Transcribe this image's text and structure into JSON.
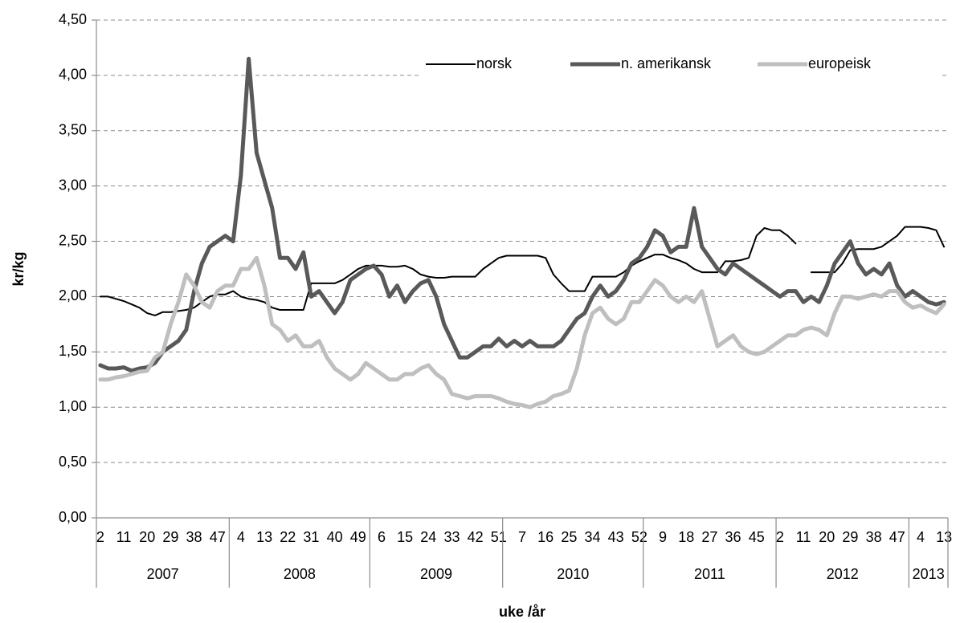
{
  "chart_data": {
    "type": "line",
    "y_label": "kr/kg",
    "x_label": "uke /år",
    "ylim": [
      0,
      4.5
    ],
    "yticks": [
      {
        "value": 0,
        "label": "0,00"
      },
      {
        "value": 0.5,
        "label": "0,50"
      },
      {
        "value": 1,
        "label": "1,00"
      },
      {
        "value": 1.5,
        "label": "1,50"
      },
      {
        "value": 2,
        "label": "2,00"
      },
      {
        "value": 2.5,
        "label": "2,50"
      },
      {
        "value": 3,
        "label": "3,00"
      },
      {
        "value": 3.5,
        "label": "3,50"
      },
      {
        "value": 4,
        "label": "4,00"
      },
      {
        "value": 4.5,
        "label": "4,50"
      }
    ],
    "grid": true,
    "legend": "top-right",
    "category_groups": [
      {
        "label": "2007",
        "categories": [
          "2",
          null,
          null,
          "11",
          null,
          null,
          "20",
          null,
          null,
          "29",
          null,
          null,
          "38",
          null,
          null,
          "47",
          null
        ]
      },
      {
        "label": "2008",
        "categories": [
          null,
          "4",
          null,
          null,
          "13",
          null,
          null,
          "22",
          null,
          null,
          "31",
          null,
          null,
          "40",
          null,
          null,
          "49",
          null
        ]
      },
      {
        "label": "2009",
        "categories": [
          null,
          "6",
          null,
          null,
          "15",
          null,
          null,
          "24",
          null,
          null,
          "33",
          null,
          null,
          "42",
          null,
          null,
          "51"
        ]
      },
      {
        "label": "2010",
        "categories": [
          null,
          null,
          "7",
          null,
          null,
          "16",
          null,
          null,
          "25",
          null,
          null,
          "34",
          null,
          null,
          "43",
          null,
          null,
          "52"
        ]
      },
      {
        "label": "2011",
        "categories": [
          null,
          null,
          "9",
          null,
          null,
          "18",
          null,
          null,
          "27",
          null,
          null,
          "36",
          null,
          null,
          "45",
          null,
          null
        ]
      },
      {
        "label": "2012",
        "categories": [
          "2",
          null,
          null,
          "11",
          null,
          null,
          "20",
          null,
          null,
          "29",
          null,
          null,
          "38",
          null,
          null,
          "47",
          null
        ]
      },
      {
        "label": "2013",
        "categories": [
          null,
          "4",
          null,
          null,
          "13"
        ]
      }
    ],
    "series": [
      {
        "name": "norsk",
        "color": "#000000",
        "width": 2,
        "values": [
          2.0,
          2.0,
          1.98,
          1.96,
          1.93,
          1.9,
          1.85,
          1.83,
          1.86,
          1.86,
          1.87,
          1.88,
          1.9,
          1.95,
          2.0,
          2.02,
          2.02,
          2.05,
          2.0,
          1.98,
          1.97,
          1.95,
          1.9,
          1.88,
          1.88,
          1.88,
          1.88,
          2.12,
          2.12,
          2.12,
          2.12,
          2.15,
          2.2,
          2.25,
          2.28,
          2.28,
          2.28,
          2.27,
          2.27,
          2.28,
          2.25,
          2.2,
          2.18,
          2.17,
          2.17,
          2.18,
          2.18,
          2.18,
          2.18,
          2.25,
          2.3,
          2.35,
          2.37,
          2.37,
          2.37,
          2.37,
          2.37,
          2.35,
          2.2,
          2.12,
          2.05,
          2.05,
          2.05,
          2.18,
          2.18,
          2.18,
          2.18,
          2.22,
          2.28,
          2.32,
          2.35,
          2.38,
          2.38,
          2.35,
          2.33,
          2.3,
          2.25,
          2.22,
          2.22,
          2.22,
          2.32,
          2.32,
          2.33,
          2.35,
          2.55,
          2.62,
          2.6,
          2.6,
          2.55,
          2.48,
          null,
          2.22,
          2.22,
          2.22,
          2.22,
          2.3,
          2.42,
          2.43,
          2.43,
          2.43,
          2.45,
          2.5,
          2.55,
          2.63,
          2.63,
          2.63,
          2.62,
          2.6,
          2.45
        ]
      },
      {
        "name": "n. amerikansk",
        "color": "#595959",
        "width": 5,
        "values": [
          1.38,
          1.35,
          1.35,
          1.36,
          1.33,
          1.35,
          1.36,
          1.4,
          1.5,
          1.55,
          1.6,
          1.7,
          2.05,
          2.3,
          2.45,
          2.5,
          2.55,
          2.5,
          3.1,
          4.15,
          3.3,
          3.05,
          2.8,
          2.35,
          2.35,
          2.25,
          2.4,
          2.0,
          2.05,
          1.95,
          1.85,
          1.95,
          2.15,
          2.2,
          2.25,
          2.28,
          2.2,
          2.0,
          2.1,
          1.95,
          2.05,
          2.12,
          2.15,
          2.0,
          1.75,
          1.6,
          1.45,
          1.45,
          1.5,
          1.55,
          1.55,
          1.62,
          1.55,
          1.6,
          1.55,
          1.6,
          1.55,
          1.55,
          1.55,
          1.6,
          1.7,
          1.8,
          1.85,
          2.0,
          2.1,
          2.0,
          2.05,
          2.15,
          2.3,
          2.35,
          2.45,
          2.6,
          2.55,
          2.4,
          2.45,
          2.45,
          2.8,
          2.45,
          2.35,
          2.25,
          2.2,
          2.3,
          2.25,
          2.2,
          2.15,
          2.1,
          2.05,
          2.0,
          2.05,
          2.05,
          1.95,
          2.0,
          1.95,
          2.1,
          2.3,
          2.4,
          2.5,
          2.3,
          2.2,
          2.25,
          2.2,
          2.3,
          2.1,
          2.0,
          2.05,
          2.0,
          1.95,
          1.93,
          1.95
        ]
      },
      {
        "name": "europeisk",
        "color": "#bfbfbf",
        "width": 5,
        "values": [
          1.25,
          1.25,
          1.27,
          1.28,
          1.3,
          1.32,
          1.33,
          1.45,
          1.5,
          1.75,
          1.95,
          2.2,
          2.1,
          1.95,
          1.9,
          2.05,
          2.1,
          2.1,
          2.25,
          2.25,
          2.35,
          2.1,
          1.75,
          1.7,
          1.6,
          1.65,
          1.55,
          1.55,
          1.6,
          1.45,
          1.35,
          1.3,
          1.25,
          1.3,
          1.4,
          1.35,
          1.3,
          1.25,
          1.25,
          1.3,
          1.3,
          1.35,
          1.38,
          1.3,
          1.25,
          1.12,
          1.1,
          1.08,
          1.1,
          1.1,
          1.1,
          1.08,
          1.05,
          1.03,
          1.02,
          1.0,
          1.03,
          1.05,
          1.1,
          1.12,
          1.15,
          1.35,
          1.65,
          1.85,
          1.9,
          1.8,
          1.75,
          1.8,
          1.95,
          1.95,
          2.05,
          2.15,
          2.1,
          2.0,
          1.95,
          2.0,
          1.95,
          2.05,
          1.8,
          1.55,
          1.6,
          1.65,
          1.55,
          1.5,
          1.48,
          1.5,
          1.55,
          1.6,
          1.65,
          1.65,
          1.7,
          1.72,
          1.7,
          1.65,
          1.85,
          2.0,
          2.0,
          1.98,
          2.0,
          2.02,
          2.0,
          2.05,
          2.05,
          1.95,
          1.9,
          1.92,
          1.88,
          1.85,
          1.93
        ]
      }
    ]
  }
}
